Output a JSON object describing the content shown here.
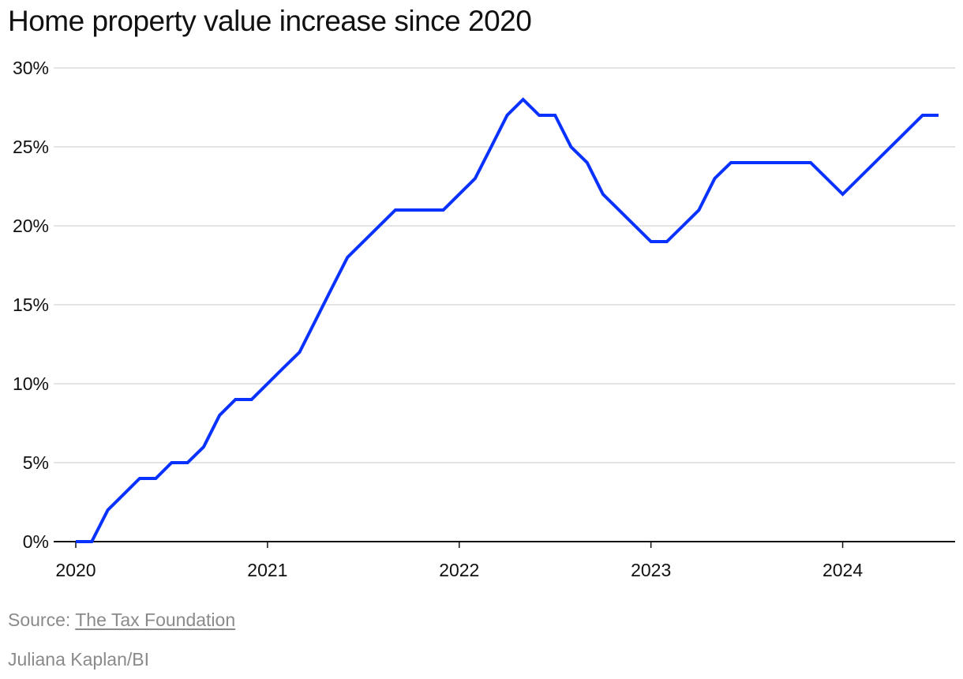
{
  "chart_data": {
    "type": "line",
    "title": "Home property value increase since 2020",
    "xlabel": "",
    "ylabel": "",
    "x_ticks": [
      "2020",
      "2021",
      "2022",
      "2023",
      "2024"
    ],
    "y_ticks": [
      "0%",
      "5%",
      "10%",
      "15%",
      "20%",
      "25%",
      "30%"
    ],
    "xlim": [
      2020.0,
      2024.5
    ],
    "ylim": [
      0,
      30
    ],
    "grid": true,
    "series": [
      {
        "color": "#0a32ff",
        "x": [
          2020.0,
          2020.083,
          2020.167,
          2020.333,
          2020.417,
          2020.5,
          2020.583,
          2020.667,
          2020.75,
          2020.833,
          2020.917,
          2021.083,
          2021.167,
          2021.333,
          2021.417,
          2021.667,
          2021.917,
          2022.083,
          2022.167,
          2022.25,
          2022.333,
          2022.417,
          2022.5,
          2022.583,
          2022.667,
          2022.75,
          2023.0,
          2023.083,
          2023.167,
          2023.25,
          2023.333,
          2023.417,
          2023.833,
          2024.0,
          2024.167,
          2024.417,
          2024.5
        ],
        "y": [
          0,
          0,
          2,
          4,
          4,
          5,
          5,
          6,
          8,
          9,
          9,
          11,
          12,
          16,
          18,
          21,
          21,
          23,
          25,
          27,
          28,
          27,
          27,
          25,
          24,
          22,
          19,
          19,
          20,
          21,
          23,
          24,
          24,
          22,
          24,
          27,
          27
        ]
      }
    ]
  },
  "footer": {
    "source_prefix": "Source:",
    "source_link": "The Tax Foundation",
    "credit": "Juliana Kaplan/BI"
  }
}
